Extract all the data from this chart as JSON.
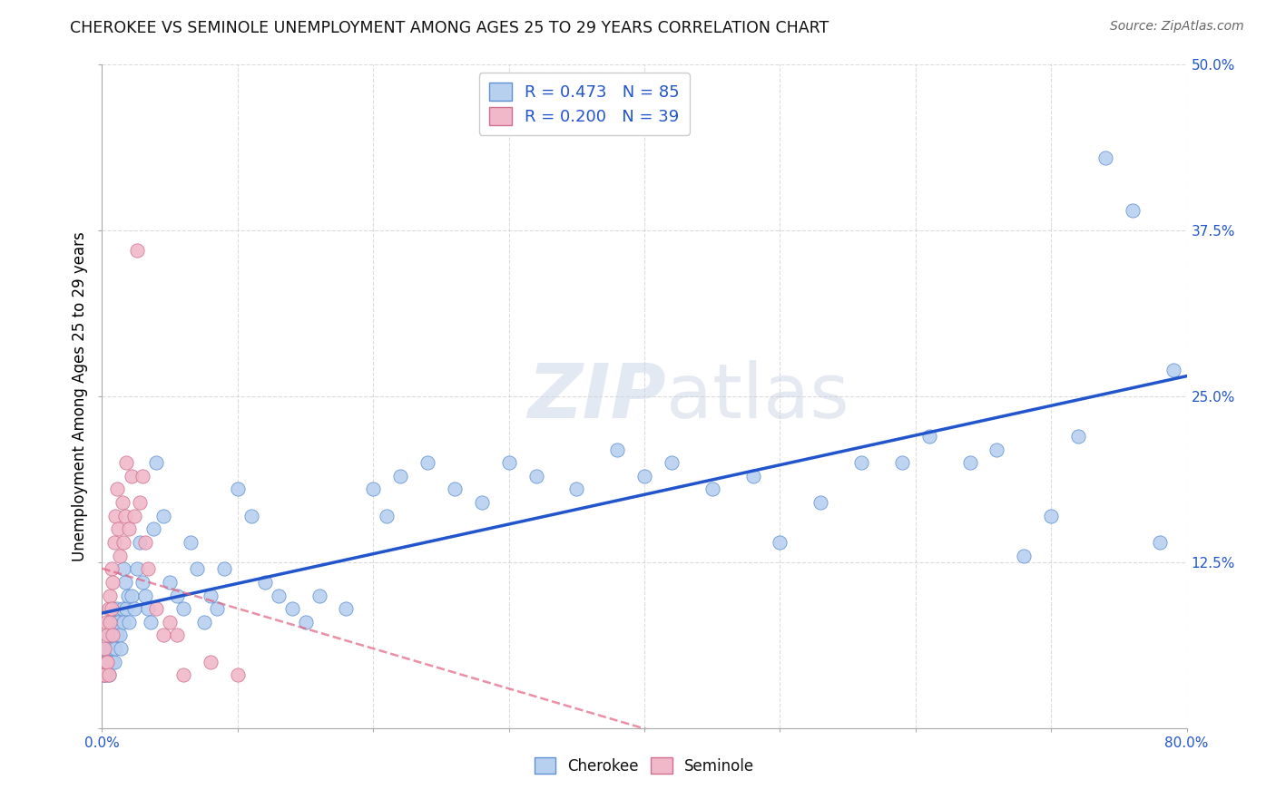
{
  "title": "CHEROKEE VS SEMINOLE UNEMPLOYMENT AMONG AGES 25 TO 29 YEARS CORRELATION CHART",
  "source": "Source: ZipAtlas.com",
  "ylabel": "Unemployment Among Ages 25 to 29 years",
  "background_color": "#ffffff",
  "watermark_zip": "ZIP",
  "watermark_atlas": "atlas",
  "cherokee_color": "#b8d0f0",
  "cherokee_edge": "#6090d0",
  "cherokee_line": "#2255cc",
  "seminole_color": "#f0b8c8",
  "seminole_edge": "#d07090",
  "seminole_line": "#e06080",
  "cherokee_R": 0.473,
  "cherokee_N": 85,
  "seminole_R": 0.2,
  "seminole_N": 39,
  "xlim": [
    0.0,
    0.8
  ],
  "ylim": [
    0.0,
    0.5
  ],
  "xticks": [
    0.0,
    0.1,
    0.2,
    0.3,
    0.4,
    0.5,
    0.6,
    0.7,
    0.8
  ],
  "xtick_labels": [
    "0.0%",
    "",
    "",
    "",
    "",
    "",
    "",
    "",
    "80.0%"
  ],
  "yticks": [
    0.0,
    0.125,
    0.25,
    0.375,
    0.5
  ],
  "ytick_labels_left": [
    "",
    "",
    "",
    "",
    ""
  ],
  "ytick_labels_right": [
    "",
    "12.5%",
    "25.0%",
    "37.5%",
    "50.0%"
  ],
  "grid_color": "#cccccc",
  "cherokee_x": [
    0.001,
    0.002,
    0.003,
    0.004,
    0.004,
    0.005,
    0.005,
    0.006,
    0.006,
    0.007,
    0.007,
    0.008,
    0.008,
    0.009,
    0.009,
    0.01,
    0.01,
    0.011,
    0.011,
    0.012,
    0.013,
    0.014,
    0.015,
    0.016,
    0.016,
    0.017,
    0.018,
    0.019,
    0.02,
    0.022,
    0.024,
    0.026,
    0.028,
    0.03,
    0.032,
    0.034,
    0.036,
    0.038,
    0.04,
    0.045,
    0.05,
    0.055,
    0.06,
    0.065,
    0.07,
    0.075,
    0.08,
    0.085,
    0.09,
    0.1,
    0.11,
    0.12,
    0.13,
    0.14,
    0.15,
    0.16,
    0.18,
    0.2,
    0.21,
    0.22,
    0.24,
    0.26,
    0.28,
    0.3,
    0.32,
    0.35,
    0.38,
    0.4,
    0.42,
    0.45,
    0.48,
    0.5,
    0.53,
    0.56,
    0.59,
    0.61,
    0.64,
    0.66,
    0.68,
    0.7,
    0.72,
    0.74,
    0.76,
    0.78,
    0.79
  ],
  "cherokee_y": [
    0.04,
    0.05,
    0.04,
    0.06,
    0.05,
    0.07,
    0.04,
    0.06,
    0.08,
    0.05,
    0.08,
    0.06,
    0.09,
    0.07,
    0.05,
    0.08,
    0.06,
    0.09,
    0.07,
    0.08,
    0.07,
    0.06,
    0.09,
    0.12,
    0.08,
    0.11,
    0.09,
    0.1,
    0.08,
    0.1,
    0.09,
    0.12,
    0.14,
    0.11,
    0.1,
    0.09,
    0.08,
    0.15,
    0.2,
    0.16,
    0.11,
    0.1,
    0.09,
    0.14,
    0.12,
    0.08,
    0.1,
    0.09,
    0.12,
    0.18,
    0.16,
    0.11,
    0.1,
    0.09,
    0.08,
    0.1,
    0.09,
    0.18,
    0.16,
    0.19,
    0.2,
    0.18,
    0.17,
    0.2,
    0.19,
    0.18,
    0.21,
    0.19,
    0.2,
    0.18,
    0.19,
    0.14,
    0.17,
    0.2,
    0.2,
    0.22,
    0.2,
    0.21,
    0.13,
    0.16,
    0.22,
    0.43,
    0.39,
    0.14,
    0.27
  ],
  "seminole_x": [
    0.001,
    0.002,
    0.002,
    0.003,
    0.003,
    0.004,
    0.004,
    0.005,
    0.005,
    0.006,
    0.006,
    0.007,
    0.007,
    0.008,
    0.008,
    0.009,
    0.01,
    0.011,
    0.012,
    0.013,
    0.015,
    0.016,
    0.017,
    0.018,
    0.02,
    0.022,
    0.024,
    0.026,
    0.028,
    0.03,
    0.032,
    0.034,
    0.04,
    0.045,
    0.05,
    0.055,
    0.06,
    0.08,
    0.1
  ],
  "seminole_y": [
    0.04,
    0.06,
    0.04,
    0.05,
    0.08,
    0.07,
    0.05,
    0.09,
    0.04,
    0.1,
    0.08,
    0.12,
    0.09,
    0.11,
    0.07,
    0.14,
    0.16,
    0.18,
    0.15,
    0.13,
    0.17,
    0.14,
    0.16,
    0.2,
    0.15,
    0.19,
    0.16,
    0.36,
    0.17,
    0.19,
    0.14,
    0.12,
    0.09,
    0.07,
    0.08,
    0.07,
    0.04,
    0.05,
    0.04
  ],
  "legend_R_color": "#2255cc",
  "legend_N_color": "#2255cc"
}
